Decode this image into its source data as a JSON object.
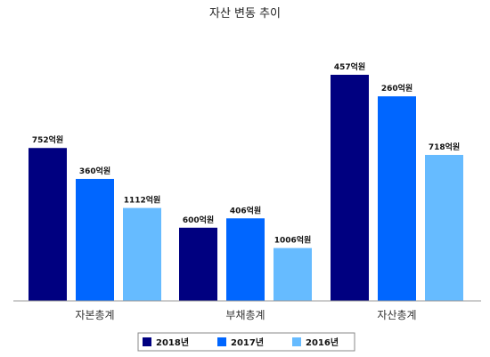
{
  "chart_data": {
    "type": "bar",
    "title": "자산 변동 추이",
    "categories": [
      "자본총계",
      "부채총계",
      "자산총계"
    ],
    "unit_suffix": "억원",
    "series": [
      {
        "name": "2018년",
        "color": "#000080",
        "values": [
          752,
          360,
          1112
        ]
      },
      {
        "name": "2017년",
        "color": "#0066ff",
        "values": [
          600,
          406,
          1006
        ]
      },
      {
        "name": "2016년",
        "color": "#66bbff",
        "values": [
          457,
          260,
          718
        ]
      }
    ],
    "ylim": [
      0,
      1140
    ],
    "grid": false,
    "legend_position": "bottom",
    "data_labels": [
      "752억원",
      "360억원",
      "1112억원",
      "600억원",
      "406억원",
      "1006억원",
      "457억원",
      "260억원",
      "718억원"
    ]
  }
}
